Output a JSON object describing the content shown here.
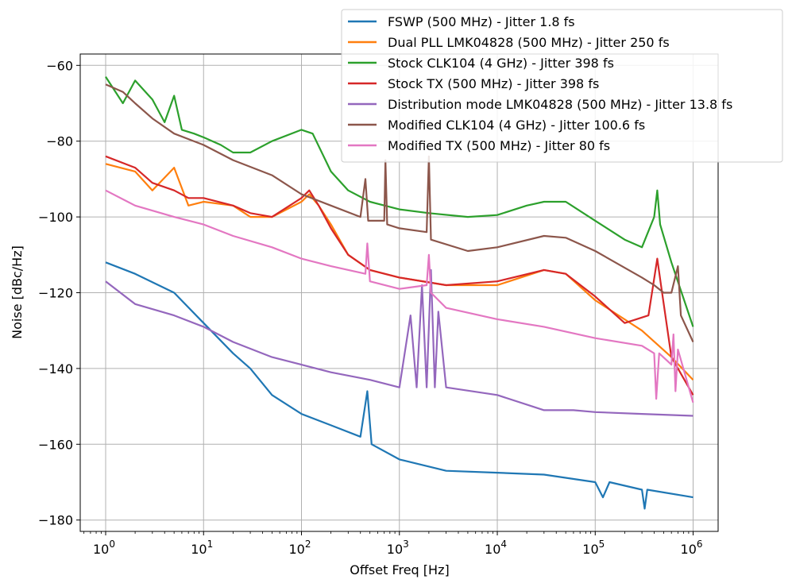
{
  "chart_data": {
    "type": "line",
    "title": "",
    "xlabel": "Offset Freq [Hz]",
    "ylabel": "Noise [dBc/Hz]",
    "xscale": "log",
    "xlim": [
      0.55,
      1800000
    ],
    "ylim": [
      -183,
      -57
    ],
    "grid": true,
    "legend_position": "top-right",
    "x_ticks": [
      {
        "value": 1,
        "base": "10",
        "exp": "0"
      },
      {
        "value": 10,
        "base": "10",
        "exp": "1"
      },
      {
        "value": 100,
        "base": "10",
        "exp": "2"
      },
      {
        "value": 1000,
        "base": "10",
        "exp": "3"
      },
      {
        "value": 10000,
        "base": "10",
        "exp": "4"
      },
      {
        "value": 100000,
        "base": "10",
        "exp": "5"
      },
      {
        "value": 1000000,
        "base": "10",
        "exp": "6"
      }
    ],
    "y_ticks": [
      {
        "value": -60,
        "label": "−60"
      },
      {
        "value": -80,
        "label": "−80"
      },
      {
        "value": -100,
        "label": "−100"
      },
      {
        "value": -120,
        "label": "−120"
      },
      {
        "value": -140,
        "label": "−140"
      },
      {
        "value": -160,
        "label": "−160"
      },
      {
        "value": -180,
        "label": "−180"
      }
    ],
    "series": [
      {
        "name": "FSWP (500 MHz) - Jitter 1.8 fs",
        "color": "#1f77b4",
        "points": [
          [
            1,
            -112
          ],
          [
            2,
            -115
          ],
          [
            5,
            -120
          ],
          [
            10,
            -128
          ],
          [
            20,
            -136
          ],
          [
            30,
            -140
          ],
          [
            50,
            -147
          ],
          [
            100,
            -152
          ],
          [
            200,
            -155
          ],
          [
            400,
            -158
          ],
          [
            470,
            -146
          ],
          [
            520,
            -160
          ],
          [
            1000,
            -164
          ],
          [
            3000,
            -167
          ],
          [
            10000,
            -167.5
          ],
          [
            30000,
            -168
          ],
          [
            100000,
            -170
          ],
          [
            120000,
            -174
          ],
          [
            140000,
            -170
          ],
          [
            300000,
            -172
          ],
          [
            320000,
            -177
          ],
          [
            340000,
            -172
          ],
          [
            1000000,
            -174
          ]
        ]
      },
      {
        "name": "Dual PLL LMK04828 (500 MHz) - Jitter 250 fs",
        "color": "#ff7f0e",
        "points": [
          [
            1,
            -86
          ],
          [
            2,
            -88
          ],
          [
            3,
            -93
          ],
          [
            5,
            -87
          ],
          [
            7,
            -97
          ],
          [
            10,
            -96
          ],
          [
            20,
            -97
          ],
          [
            30,
            -100
          ],
          [
            50,
            -100
          ],
          [
            100,
            -96
          ],
          [
            120,
            -94
          ],
          [
            150,
            -97
          ],
          [
            200,
            -102
          ],
          [
            300,
            -110
          ],
          [
            500,
            -114
          ],
          [
            1000,
            -116
          ],
          [
            3000,
            -118
          ],
          [
            10000,
            -118
          ],
          [
            30000,
            -114
          ],
          [
            50000,
            -115
          ],
          [
            100000,
            -122
          ],
          [
            300000,
            -130
          ],
          [
            600000,
            -137
          ],
          [
            1000000,
            -143
          ]
        ]
      },
      {
        "name": "Stock CLK104 (4 GHz) - Jitter 398 fs",
        "color": "#2ca02c",
        "points": [
          [
            1,
            -63
          ],
          [
            1.5,
            -70
          ],
          [
            2,
            -64
          ],
          [
            3,
            -69
          ],
          [
            4,
            -75
          ],
          [
            5,
            -68
          ],
          [
            6,
            -77
          ],
          [
            8,
            -78
          ],
          [
            10,
            -79
          ],
          [
            15,
            -81
          ],
          [
            20,
            -83
          ],
          [
            30,
            -83
          ],
          [
            50,
            -80
          ],
          [
            100,
            -77
          ],
          [
            130,
            -78
          ],
          [
            200,
            -88
          ],
          [
            300,
            -93
          ],
          [
            500,
            -96
          ],
          [
            1000,
            -98
          ],
          [
            2000,
            -99
          ],
          [
            5000,
            -100
          ],
          [
            10000,
            -99.5
          ],
          [
            20000,
            -97
          ],
          [
            30000,
            -96
          ],
          [
            50000,
            -96
          ],
          [
            100000,
            -101
          ],
          [
            200000,
            -106
          ],
          [
            300000,
            -108
          ],
          [
            400000,
            -100
          ],
          [
            430000,
            -93
          ],
          [
            460000,
            -102
          ],
          [
            600000,
            -112
          ],
          [
            1000000,
            -129
          ]
        ]
      },
      {
        "name": "Stock TX (500 MHz) - Jitter 398 fs",
        "color": "#d62728",
        "points": [
          [
            1,
            -84
          ],
          [
            2,
            -87
          ],
          [
            3,
            -91
          ],
          [
            5,
            -93
          ],
          [
            7,
            -95
          ],
          [
            10,
            -95
          ],
          [
            20,
            -97
          ],
          [
            30,
            -99
          ],
          [
            50,
            -100
          ],
          [
            100,
            -95
          ],
          [
            120,
            -93
          ],
          [
            150,
            -97
          ],
          [
            200,
            -103
          ],
          [
            300,
            -110
          ],
          [
            500,
            -114
          ],
          [
            1000,
            -116
          ],
          [
            3000,
            -118
          ],
          [
            10000,
            -117
          ],
          [
            30000,
            -114
          ],
          [
            50000,
            -115
          ],
          [
            100000,
            -121
          ],
          [
            200000,
            -128
          ],
          [
            350000,
            -126
          ],
          [
            430000,
            -111
          ],
          [
            470000,
            -118
          ],
          [
            600000,
            -137
          ],
          [
            1000000,
            -147
          ]
        ]
      },
      {
        "name": "Distribution mode LMK04828 (500 MHz) - Jitter 13.8 fs",
        "color": "#9467bd",
        "points": [
          [
            1,
            -117
          ],
          [
            2,
            -123
          ],
          [
            5,
            -126
          ],
          [
            10,
            -129
          ],
          [
            20,
            -133
          ],
          [
            50,
            -137
          ],
          [
            100,
            -139
          ],
          [
            200,
            -141
          ],
          [
            500,
            -143
          ],
          [
            1000,
            -145
          ],
          [
            1300,
            -126
          ],
          [
            1500,
            -145
          ],
          [
            1700,
            -118
          ],
          [
            1900,
            -145
          ],
          [
            2100,
            -114
          ],
          [
            2300,
            -145
          ],
          [
            2500,
            -125
          ],
          [
            3000,
            -145
          ],
          [
            10000,
            -147
          ],
          [
            30000,
            -151
          ],
          [
            60000,
            -151
          ],
          [
            100000,
            -151.5
          ],
          [
            300000,
            -152
          ],
          [
            1000000,
            -152.5
          ]
        ]
      },
      {
        "name": "Modified CLK104 (4 GHz) - Jitter 100.6 fs",
        "color": "#8c564b",
        "points": [
          [
            1,
            -65
          ],
          [
            1.5,
            -67
          ],
          [
            2,
            -70
          ],
          [
            3,
            -74
          ],
          [
            5,
            -78
          ],
          [
            10,
            -81
          ],
          [
            20,
            -85
          ],
          [
            50,
            -89
          ],
          [
            100,
            -94
          ],
          [
            200,
            -97
          ],
          [
            400,
            -100
          ],
          [
            450,
            -90
          ],
          [
            480,
            -101
          ],
          [
            700,
            -101
          ],
          [
            720,
            -85
          ],
          [
            750,
            -102
          ],
          [
            1000,
            -103
          ],
          [
            1900,
            -104
          ],
          [
            2000,
            -84
          ],
          [
            2100,
            -106
          ],
          [
            5000,
            -109
          ],
          [
            10000,
            -108
          ],
          [
            30000,
            -105
          ],
          [
            50000,
            -105.5
          ],
          [
            100000,
            -109
          ],
          [
            300000,
            -116
          ],
          [
            400000,
            -118
          ],
          [
            500000,
            -120
          ],
          [
            600000,
            -120
          ],
          [
            700000,
            -113
          ],
          [
            750000,
            -126
          ],
          [
            1000000,
            -133
          ]
        ]
      },
      {
        "name": "Modified TX (500 MHz) - Jitter 80 fs",
        "color": "#e377c2",
        "points": [
          [
            1,
            -93
          ],
          [
            2,
            -97
          ],
          [
            5,
            -100
          ],
          [
            10,
            -102
          ],
          [
            20,
            -105
          ],
          [
            50,
            -108
          ],
          [
            100,
            -111
          ],
          [
            200,
            -113
          ],
          [
            450,
            -115
          ],
          [
            470,
            -107
          ],
          [
            500,
            -117
          ],
          [
            1000,
            -119
          ],
          [
            1900,
            -118
          ],
          [
            2000,
            -110
          ],
          [
            2100,
            -120
          ],
          [
            3000,
            -124
          ],
          [
            10000,
            -127
          ],
          [
            30000,
            -129
          ],
          [
            100000,
            -132
          ],
          [
            300000,
            -134
          ],
          [
            400000,
            -136
          ],
          [
            420000,
            -148
          ],
          [
            450000,
            -136
          ],
          [
            600000,
            -139
          ],
          [
            630000,
            -131
          ],
          [
            660000,
            -146
          ],
          [
            700000,
            -135
          ],
          [
            1000000,
            -149
          ]
        ]
      }
    ]
  }
}
